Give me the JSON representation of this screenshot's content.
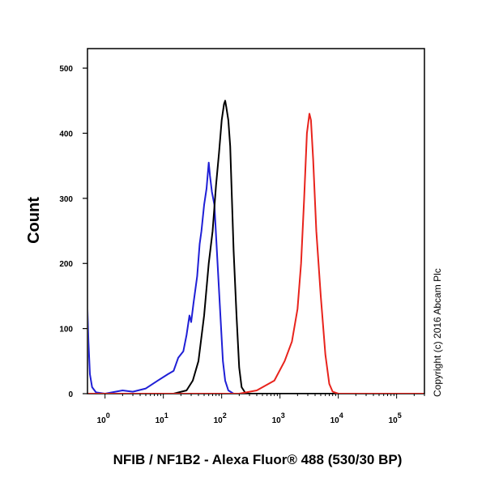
{
  "chart_data": {
    "type": "line",
    "title": "",
    "xlabel": "NFIB / NF1B2 - Alexa Fluor® 488 (530/30 BP)",
    "ylabel": "Count",
    "x_scale": "log",
    "xlim": [
      0.5,
      300000
    ],
    "ylim": [
      0,
      530
    ],
    "y_ticks": [
      0,
      100,
      200,
      300,
      400,
      500
    ],
    "x_ticks": [
      {
        "value": 1,
        "label": "10",
        "exp": "0"
      },
      {
        "value": 10,
        "label": "10",
        "exp": "1"
      },
      {
        "value": 100,
        "label": "10",
        "exp": "2"
      },
      {
        "value": 1000,
        "label": "10",
        "exp": "3"
      },
      {
        "value": 10000,
        "label": "10",
        "exp": "4"
      },
      {
        "value": 100000,
        "label": "10",
        "exp": "5"
      }
    ],
    "grid": false,
    "legend": "none",
    "series": [
      {
        "color": "#1f1fd6",
        "points": [
          [
            0.5,
            130
          ],
          [
            0.52,
            80
          ],
          [
            0.55,
            30
          ],
          [
            0.6,
            10
          ],
          [
            0.7,
            2
          ],
          [
            1,
            0
          ],
          [
            2,
            5
          ],
          [
            3,
            3
          ],
          [
            5,
            8
          ],
          [
            8,
            20
          ],
          [
            12,
            30
          ],
          [
            15,
            35
          ],
          [
            18,
            55
          ],
          [
            22,
            65
          ],
          [
            25,
            90
          ],
          [
            28,
            120
          ],
          [
            30,
            110
          ],
          [
            33,
            140
          ],
          [
            38,
            180
          ],
          [
            42,
            230
          ],
          [
            45,
            250
          ],
          [
            50,
            290
          ],
          [
            55,
            315
          ],
          [
            60,
            355
          ],
          [
            63,
            335
          ],
          [
            68,
            310
          ],
          [
            75,
            290
          ],
          [
            85,
            200
          ],
          [
            95,
            120
          ],
          [
            105,
            50
          ],
          [
            115,
            20
          ],
          [
            130,
            5
          ],
          [
            160,
            0
          ],
          [
            300000,
            0
          ]
        ]
      },
      {
        "color": "#000000",
        "points": [
          [
            0.5,
            0
          ],
          [
            15,
            0
          ],
          [
            25,
            5
          ],
          [
            32,
            20
          ],
          [
            40,
            50
          ],
          [
            50,
            120
          ],
          [
            60,
            200
          ],
          [
            70,
            250
          ],
          [
            80,
            320
          ],
          [
            90,
            370
          ],
          [
            100,
            420
          ],
          [
            110,
            445
          ],
          [
            115,
            450
          ],
          [
            120,
            440
          ],
          [
            130,
            420
          ],
          [
            140,
            380
          ],
          [
            150,
            300
          ],
          [
            160,
            220
          ],
          [
            180,
            120
          ],
          [
            200,
            40
          ],
          [
            220,
            10
          ],
          [
            260,
            0
          ],
          [
            300000,
            0
          ]
        ]
      },
      {
        "color": "#e8231c",
        "points": [
          [
            0.5,
            0
          ],
          [
            200,
            0
          ],
          [
            400,
            5
          ],
          [
            800,
            20
          ],
          [
            1200,
            50
          ],
          [
            1600,
            80
          ],
          [
            2000,
            130
          ],
          [
            2300,
            200
          ],
          [
            2600,
            300
          ],
          [
            2900,
            400
          ],
          [
            3200,
            430
          ],
          [
            3400,
            420
          ],
          [
            3700,
            360
          ],
          [
            4200,
            250
          ],
          [
            5000,
            150
          ],
          [
            6000,
            60
          ],
          [
            7000,
            15
          ],
          [
            8000,
            3
          ],
          [
            10000,
            0
          ],
          [
            300000,
            0
          ]
        ]
      }
    ],
    "annotations": [
      "Copyright (c) 2016 Abcam Plc"
    ]
  }
}
